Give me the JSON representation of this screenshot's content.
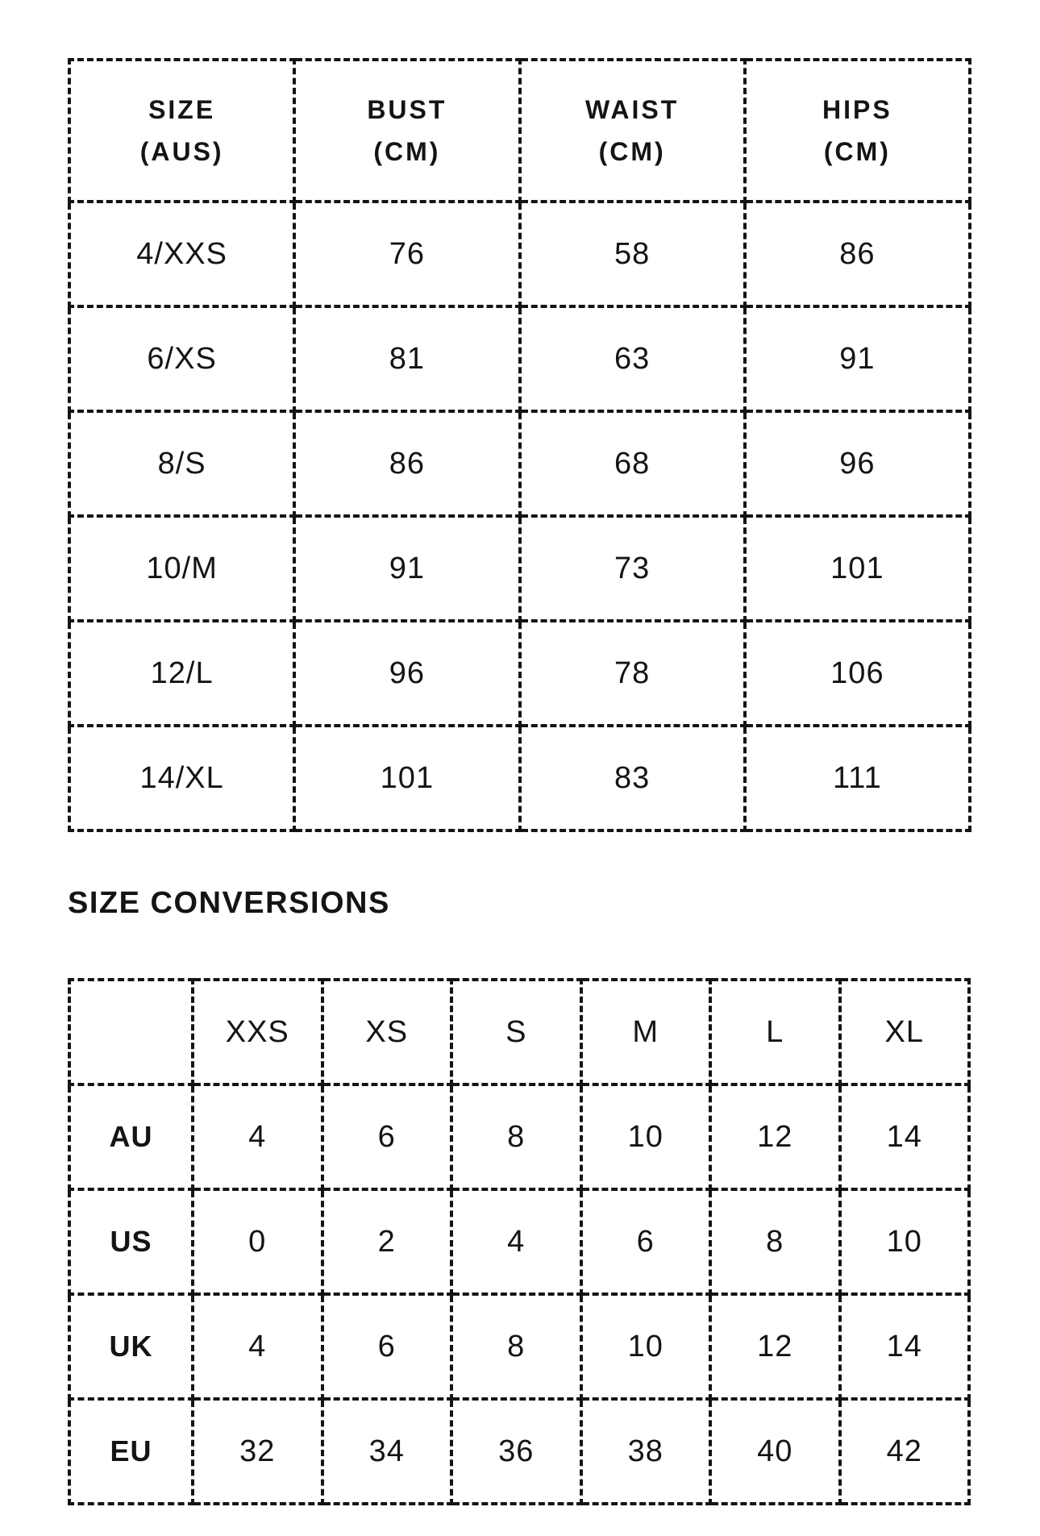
{
  "measurement_table": {
    "headers": [
      [
        "SIZE",
        "(AUS)"
      ],
      [
        "BUST",
        "(CM)"
      ],
      [
        "WAIST",
        "(CM)"
      ],
      [
        "HIPS",
        "(CM)"
      ]
    ],
    "rows": [
      [
        "4/XXS",
        "76",
        "58",
        "86"
      ],
      [
        "6/XS",
        "81",
        "63",
        "91"
      ],
      [
        "8/S",
        "86",
        "68",
        "96"
      ],
      [
        "10/M",
        "91",
        "73",
        "101"
      ],
      [
        "12/L",
        "96",
        "78",
        "106"
      ],
      [
        "14/XL",
        "101",
        "83",
        "111"
      ]
    ]
  },
  "section_heading": "SIZE CONVERSIONS",
  "conversion_table": {
    "corner": "",
    "headers": [
      "XXS",
      "XS",
      "S",
      "M",
      "L",
      "XL"
    ],
    "rows": [
      {
        "label": "AU",
        "values": [
          "4",
          "6",
          "8",
          "10",
          "12",
          "14"
        ]
      },
      {
        "label": "US",
        "values": [
          "0",
          "2",
          "4",
          "6",
          "8",
          "10"
        ]
      },
      {
        "label": "UK",
        "values": [
          "4",
          "6",
          "8",
          "10",
          "12",
          "14"
        ]
      },
      {
        "label": "EU",
        "values": [
          "32",
          "34",
          "36",
          "38",
          "40",
          "42"
        ]
      }
    ]
  },
  "colors": {
    "text": "#141414",
    "border": "#141414",
    "background": "#ffffff"
  }
}
